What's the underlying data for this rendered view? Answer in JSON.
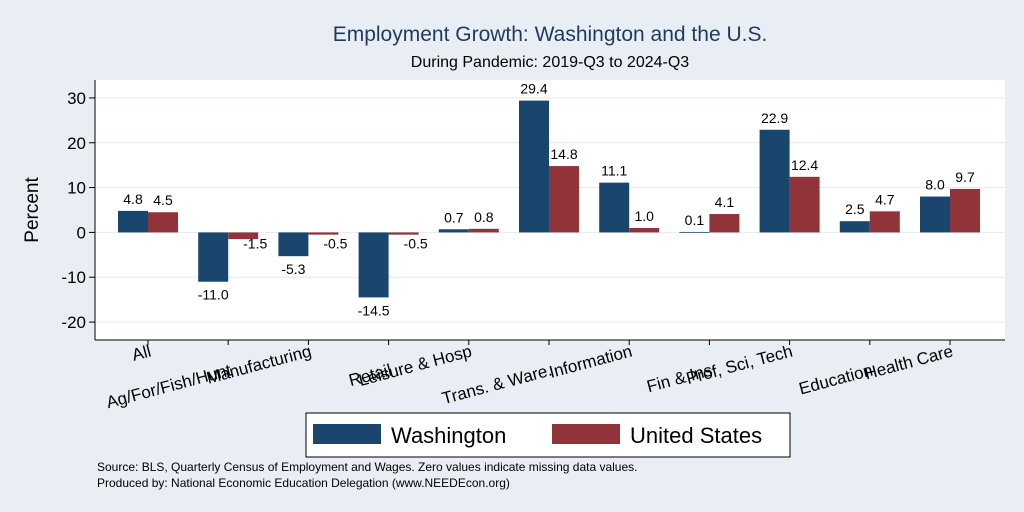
{
  "chart_data": {
    "type": "bar",
    "title": "Employment Growth: Washington and the U.S.",
    "subtitle": "During Pandemic: 2019-Q3 to 2024-Q3",
    "ylabel": "Percent",
    "ylim": [
      -24,
      34
    ],
    "yticks": [
      -20,
      -10,
      0,
      10,
      20,
      30
    ],
    "grid": true,
    "legend_position": "bottom",
    "categories": [
      "All",
      "Ag/For/Fish/Hunt",
      "Manufacturing",
      "Retail",
      "Leisure & Hosp",
      "Trans. & Ware.",
      "Information",
      "Fin & Ins",
      "Prof, Sci, Tech",
      "Education",
      "Health Care"
    ],
    "series": [
      {
        "name": "Washington",
        "color": "#1a466e",
        "values": [
          4.8,
          -11.0,
          -5.3,
          -14.5,
          0.7,
          29.4,
          11.1,
          0.1,
          22.9,
          2.5,
          8.0
        ],
        "labels": [
          "4.8",
          "-11.0",
          "-5.3",
          "-14.5",
          "0.7",
          "29.4",
          "11.1",
          "0.1",
          "22.9",
          "2.5",
          "8.0"
        ]
      },
      {
        "name": "United States",
        "color": "#913439",
        "values": [
          4.5,
          -1.5,
          -0.5,
          -0.5,
          0.8,
          14.8,
          1.0,
          4.1,
          12.4,
          4.7,
          9.7
        ],
        "labels": [
          "4.5",
          "-1.5",
          "-0.5",
          "-0.5",
          "0.8",
          "14.8",
          "1.0",
          "4.1",
          "12.4",
          "4.7",
          "9.7"
        ]
      }
    ]
  },
  "notes": {
    "source": "Source: BLS, Quarterly Census of Employment and Wages. Zero values indicate missing data values.",
    "produced": "Produced by: National Economic Education Delegation (www.NEEDEcon.org)"
  }
}
